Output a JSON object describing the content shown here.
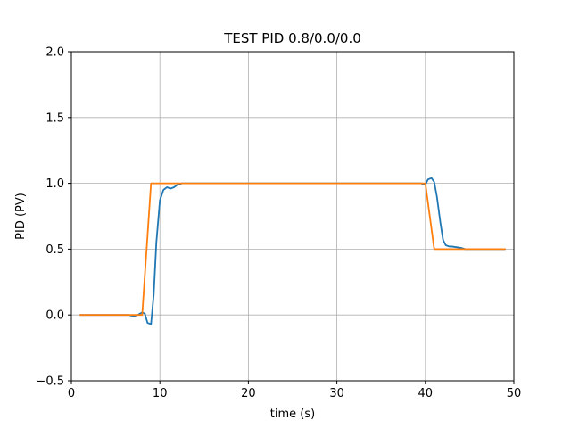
{
  "chart_data": {
    "type": "line",
    "title": "TEST PID 0.8/0.0/0.0",
    "xlabel": "time (s)",
    "ylabel": "PID (PV)",
    "xlim": [
      0,
      50
    ],
    "ylim": [
      -0.5,
      2.0
    ],
    "xticks": [
      0,
      10,
      20,
      30,
      40,
      50
    ],
    "yticks": [
      -0.5,
      0.0,
      0.5,
      1.0,
      1.5,
      2.0
    ],
    "xtick_labels": [
      "0",
      "10",
      "20",
      "30",
      "40",
      "50"
    ],
    "ytick_labels": [
      "−0.5",
      "0.0",
      "0.5",
      "1.0",
      "1.5",
      "2.0"
    ],
    "grid": true,
    "series": [
      {
        "color": "#1f77b4",
        "x": [
          1,
          6,
          6.5,
          7,
          7.5,
          8,
          8.3,
          8.6,
          9,
          9.3,
          9.6,
          10,
          10.4,
          10.8,
          11.2,
          11.6,
          12,
          12.5,
          13,
          14,
          20,
          30,
          38,
          39,
          39.5,
          40,
          40.3,
          40.7,
          41,
          41.3,
          41.7,
          42,
          42.3,
          42.7,
          43,
          43.5,
          44,
          44.5,
          45,
          49
        ],
        "y": [
          0,
          0,
          0.0,
          -0.01,
          0.0,
          0.02,
          0.01,
          -0.06,
          -0.07,
          0.15,
          0.55,
          0.87,
          0.95,
          0.97,
          0.96,
          0.97,
          0.99,
          1.0,
          1.0,
          1.0,
          1.0,
          1.0,
          1.0,
          1.0,
          1.0,
          0.99,
          1.03,
          1.04,
          1.01,
          0.9,
          0.7,
          0.57,
          0.53,
          0.52,
          0.52,
          0.515,
          0.51,
          0.5,
          0.5,
          0.5
        ]
      },
      {
        "color": "#ff7f0e",
        "x": [
          1,
          7,
          8,
          9,
          10,
          39,
          40,
          41,
          49
        ],
        "y": [
          0,
          0,
          0,
          1,
          1,
          1,
          1,
          0.5,
          0.5
        ]
      }
    ]
  }
}
